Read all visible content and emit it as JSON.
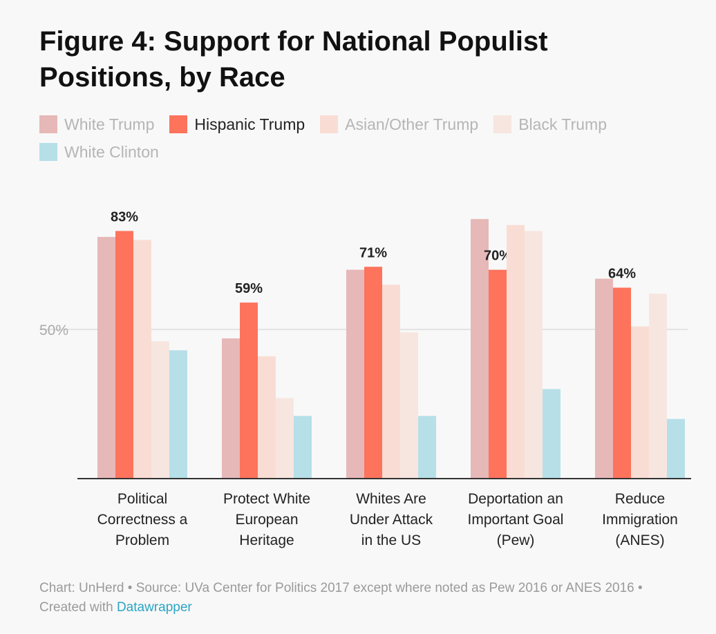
{
  "chart_data": {
    "type": "bar",
    "title": "Figure 4: Support for National Populist Positions, by Race",
    "categories": [
      [
        "Political",
        "Correctness a",
        "Problem"
      ],
      [
        "Protect White",
        "European",
        "Heritage"
      ],
      [
        "Whites Are",
        "Under Attack",
        "in the US"
      ],
      [
        "Deportation an",
        "Important Goal",
        "(Pew)"
      ],
      [
        "Reduce",
        "Immigration",
        "(ANES)"
      ]
    ],
    "series": [
      {
        "name": "White Trump",
        "color": "#e6b8b7",
        "values": [
          81,
          47,
          70,
          87,
          67
        ]
      },
      {
        "name": "Hispanic Trump",
        "color": "#fd735c",
        "values": [
          83,
          59,
          71,
          70,
          64
        ],
        "highlighted": true,
        "labels": [
          "83%",
          "59%",
          "71%",
          "70%",
          "64%"
        ]
      },
      {
        "name": "Asian/Other Trump",
        "color": "#f9ddd4",
        "values": [
          80,
          41,
          65,
          85,
          51
        ]
      },
      {
        "name": "Black Trump",
        "color": "#f7e6e0",
        "values": [
          46,
          27,
          49,
          83,
          62
        ]
      },
      {
        "name": "White Clinton",
        "color": "#b6dfe8",
        "values": [
          43,
          21,
          21,
          30,
          20
        ]
      }
    ],
    "yticks": [
      {
        "value": 50,
        "label": "50%"
      }
    ],
    "ylim": [
      0,
      100
    ],
    "xlabel": "",
    "ylabel": "",
    "legend_position": "top-left"
  },
  "footer": {
    "text": "Chart: UnHerd • Source: UVa Center for Politics 2017 except where noted as Pew 2016 or ANES 2016 • Created with ",
    "link": "Datawrapper"
  }
}
